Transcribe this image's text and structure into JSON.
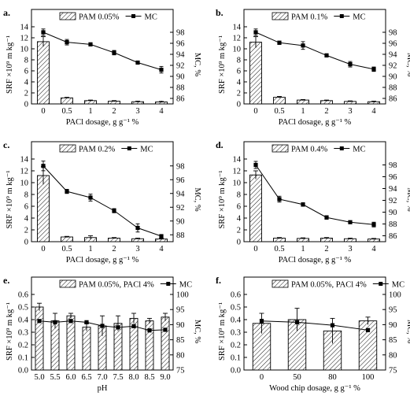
{
  "colors": {
    "bar_fill": "#ffffff",
    "bar_hatch": "#000000",
    "line": "#000000",
    "marker": "#000000",
    "axes": "#000000"
  },
  "chart_data": [
    {
      "id": "a",
      "panel_label": "a.",
      "type": "bar",
      "categories": [
        "0",
        "0.5",
        "1",
        "2",
        "3",
        "4"
      ],
      "xlabel": "PACl dosage, g g⁻¹ %",
      "ylabel": "SRF ×10⁹ m kg⁻¹",
      "y2label": "MC, %",
      "ylim": [
        0,
        14
      ],
      "yticks": [
        "0",
        "2",
        "4",
        "6",
        "8",
        "10",
        "12",
        "14"
      ],
      "y2lim": [
        85,
        99
      ],
      "y2ticks": [
        "86",
        "88",
        "90",
        "92",
        "94",
        "96",
        "98"
      ],
      "legend": {
        "bar": "PAM 0.05%",
        "line": "MC",
        "placement": "top-center"
      },
      "series": [
        {
          "name": "PAM 0.05%",
          "kind": "bar",
          "values": [
            11.3,
            1.1,
            0.6,
            0.5,
            0.4,
            0.35
          ],
          "errors": [
            0.9,
            0.1,
            0.1,
            0.1,
            0.1,
            0.1
          ]
        },
        {
          "name": "MC",
          "kind": "line",
          "axis": "right",
          "values": [
            98.0,
            96.2,
            95.8,
            94.3,
            92.5,
            91.2
          ],
          "errors": [
            0.6,
            0.5,
            0.3,
            0.4,
            0.2,
            0.6
          ]
        }
      ]
    },
    {
      "id": "b",
      "panel_label": "b.",
      "type": "bar",
      "categories": [
        "0",
        "0.5",
        "1",
        "2",
        "3",
        "4"
      ],
      "xlabel": "PACl dosage, g g⁻¹ %",
      "ylabel": "SRF ×10⁹ m kg⁻¹",
      "y2label": "MC, %",
      "ylim": [
        0,
        14
      ],
      "yticks": [
        "0",
        "2",
        "4",
        "6",
        "8",
        "10",
        "12",
        "14"
      ],
      "y2lim": [
        85,
        99
      ],
      "y2ticks": [
        "86",
        "88",
        "90",
        "92",
        "94",
        "96",
        "98"
      ],
      "legend": {
        "bar": "PAM 0.1%",
        "line": "MC",
        "placement": "top-center"
      },
      "series": [
        {
          "name": "PAM 0.1%",
          "kind": "bar",
          "values": [
            11.2,
            1.2,
            0.7,
            0.6,
            0.45,
            0.4
          ],
          "errors": [
            1.0,
            0.15,
            0.1,
            0.1,
            0.1,
            0.1
          ]
        },
        {
          "name": "MC",
          "kind": "line",
          "axis": "right",
          "values": [
            98.0,
            96.1,
            95.6,
            93.8,
            92.2,
            91.3
          ],
          "errors": [
            0.6,
            0.3,
            0.7,
            0.3,
            0.5,
            0.4
          ]
        }
      ]
    },
    {
      "id": "c",
      "panel_label": "c.",
      "type": "bar",
      "categories": [
        "0",
        "0.5",
        "1",
        "2",
        "3",
        "4"
      ],
      "xlabel": "PACl dosage, g g⁻¹ %",
      "ylabel": "SRF ×10⁹ m kg⁻¹",
      "y2label": "MC, %",
      "ylim": [
        0,
        14
      ],
      "yticks": [
        "0",
        "2",
        "4",
        "6",
        "8",
        "10",
        "12",
        "14"
      ],
      "y2lim": [
        87,
        99
      ],
      "y2ticks": [
        "88",
        "90",
        "92",
        "94",
        "96",
        "98"
      ],
      "legend": {
        "bar": "PAM 0.2%",
        "line": "MC",
        "placement": "top-center"
      },
      "series": [
        {
          "name": "PAM 0.2%",
          "kind": "bar",
          "values": [
            11.2,
            0.8,
            0.7,
            0.6,
            0.5,
            0.45
          ],
          "errors": [
            1.5,
            0.1,
            0.3,
            0.1,
            0.1,
            0.1
          ]
        },
        {
          "name": "MC",
          "kind": "line",
          "axis": "right",
          "values": [
            98.0,
            94.3,
            93.4,
            91.5,
            89.0,
            87.8
          ],
          "errors": [
            0.7,
            0.3,
            0.5,
            0.3,
            0.6,
            0.2
          ]
        }
      ]
    },
    {
      "id": "d",
      "panel_label": "d.",
      "type": "bar",
      "categories": [
        "0",
        "0.5",
        "1",
        "2",
        "3",
        "4"
      ],
      "xlabel": "PACl dosage, g g⁻¹ %",
      "ylabel": "SRF ×10⁹ m kg⁻¹",
      "y2label": "MC, %",
      "ylim": [
        0,
        14
      ],
      "yticks": [
        "0",
        "2",
        "4",
        "6",
        "8",
        "10",
        "12",
        "14"
      ],
      "y2lim": [
        85,
        99
      ],
      "y2ticks": [
        "86",
        "88",
        "90",
        "92",
        "94",
        "96",
        "98"
      ],
      "legend": {
        "bar": "PAM 0.4%",
        "line": "MC",
        "placement": "top-center"
      },
      "series": [
        {
          "name": "PAM 0.4%",
          "kind": "bar",
          "values": [
            11.3,
            0.6,
            0.55,
            0.6,
            0.5,
            0.45
          ],
          "errors": [
            0.7,
            0.1,
            0.1,
            0.1,
            0.1,
            0.1
          ]
        },
        {
          "name": "MC",
          "kind": "line",
          "axis": "right",
          "values": [
            98.0,
            92.2,
            91.3,
            89.1,
            88.3,
            87.9
          ],
          "errors": [
            0.6,
            0.5,
            0.3,
            0.3,
            0.2,
            0.4
          ]
        }
      ]
    },
    {
      "id": "e",
      "panel_label": "e.",
      "type": "bar",
      "categories": [
        "5.0",
        "5.5",
        "6.0",
        "6.5",
        "7.0",
        "7.5",
        "8.0",
        "8.5",
        "9.0"
      ],
      "xlabel": "pH",
      "ylabel": "SRF ×10⁹ m kg⁻¹",
      "y2label": "MC, %",
      "ylim": [
        0.0,
        0.6
      ],
      "yticks": [
        "0.0",
        "0.1",
        "0.2",
        "0.3",
        "0.4",
        "0.5",
        "0.6"
      ],
      "y2lim": [
        75,
        100
      ],
      "y2ticks": [
        "75",
        "80",
        "85",
        "90",
        "95",
        "100"
      ],
      "legend": {
        "bar": "PAM 0.05%, PACl 4%",
        "line": "MC",
        "placement": "top-center"
      },
      "series": [
        {
          "name": "PAM 0.05%, PACl 4%",
          "kind": "bar",
          "values": [
            0.5,
            0.39,
            0.43,
            0.34,
            0.35,
            0.37,
            0.41,
            0.39,
            0.42
          ],
          "errors": [
            0.03,
            0.06,
            0.02,
            0.03,
            0.08,
            0.06,
            0.04,
            0.02,
            0.03
          ]
        },
        {
          "name": "MC",
          "kind": "line",
          "axis": "right",
          "values": [
            91.2,
            90.8,
            91.2,
            90.8,
            89.6,
            89.1,
            89.5,
            88.1,
            88.3
          ],
          "errors": [
            0.4,
            0.3,
            0.5,
            0.4,
            0.5,
            0.3,
            0.3,
            0.5,
            0.2
          ]
        }
      ]
    },
    {
      "id": "f",
      "panel_label": "f.",
      "type": "bar",
      "categories": [
        "0",
        "50",
        "80",
        "100"
      ],
      "xlabel": "Wood chip dosage, g g⁻¹ %",
      "ylabel": "SRF ×10⁹ m kg⁻¹",
      "y2label": "MC, %",
      "ylim": [
        0.0,
        0.6
      ],
      "yticks": [
        "0.0",
        "0.1",
        "0.2",
        "0.3",
        "0.4",
        "0.5",
        "0.6"
      ],
      "y2lim": [
        75,
        100
      ],
      "y2ticks": [
        "75",
        "80",
        "85",
        "90",
        "95",
        "100"
      ],
      "legend": {
        "bar": "PAM 0.05%, PACl 4%",
        "line": "MC",
        "placement": "top-center"
      },
      "series": [
        {
          "name": "PAM 0.05%, PACl 4%",
          "kind": "bar",
          "values": [
            0.37,
            0.4,
            0.31,
            0.39
          ],
          "errors": [
            0.08,
            0.09,
            0.1,
            0.03
          ]
        },
        {
          "name": "MC",
          "kind": "line",
          "axis": "right",
          "values": [
            91.2,
            90.8,
            89.8,
            88.2
          ],
          "errors": [
            0.6,
            0.3,
            0.5,
            0.5
          ]
        }
      ]
    }
  ]
}
